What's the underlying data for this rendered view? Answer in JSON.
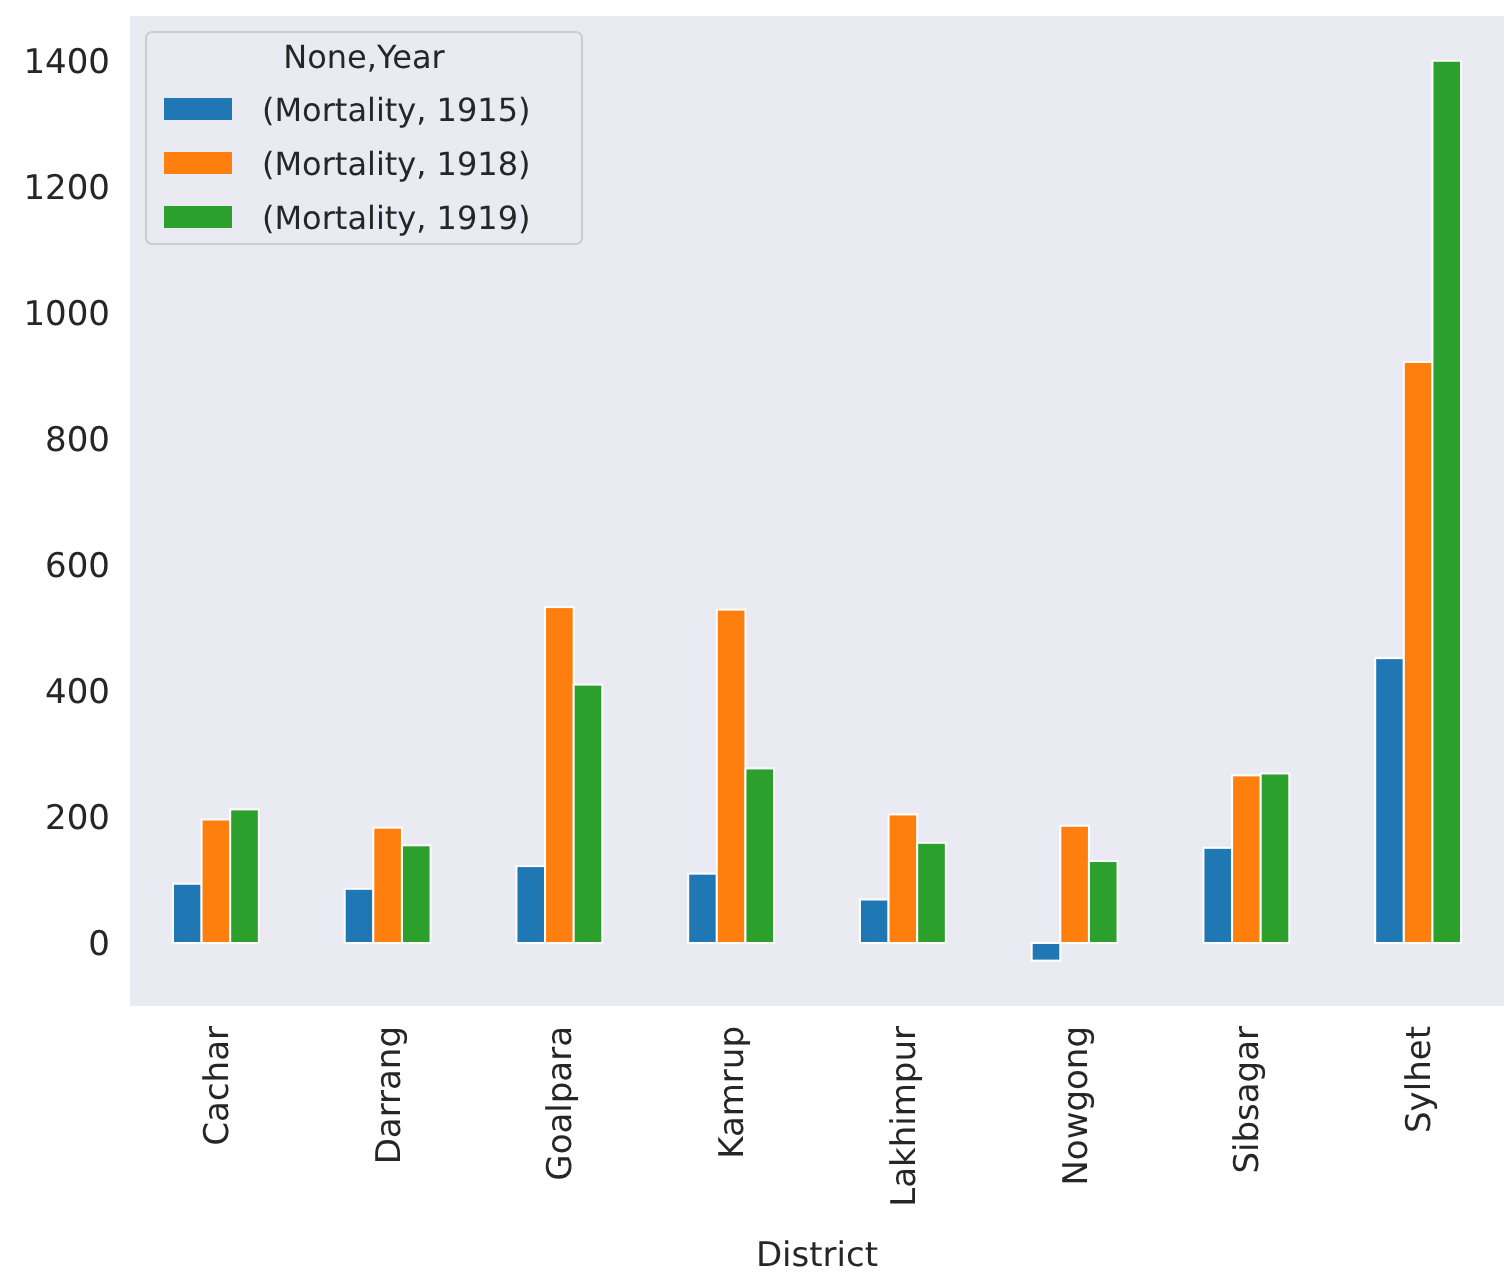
{
  "chart_data": {
    "type": "bar",
    "xlabel": "District",
    "legend_title": "None,Year",
    "legend": "top left",
    "grid": false,
    "categories": [
      "Cachar",
      "Darrang",
      "Goalpara",
      "Kamrup",
      "Lakhimpur",
      "Nowgong",
      "Sibsagar",
      "Sylhet"
    ],
    "series": [
      {
        "name": "(Mortality, 1915)",
        "color": "#1f77b4",
        "values": [
          94,
          86,
          122,
          110,
          69,
          -28,
          151,
          452
        ]
      },
      {
        "name": "(Mortality, 1918)",
        "color": "#ff7f0e",
        "values": [
          196,
          183,
          533,
          529,
          204,
          186,
          266,
          922
        ]
      },
      {
        "name": "(Mortality, 1919)",
        "color": "#2ca02c",
        "values": [
          212,
          155,
          410,
          277,
          159,
          130,
          269,
          1400
        ]
      }
    ],
    "ylim": [
      -100,
      1471
    ],
    "yticks": [
      0,
      200,
      400,
      600,
      800,
      1000,
      1200,
      1400
    ]
  }
}
